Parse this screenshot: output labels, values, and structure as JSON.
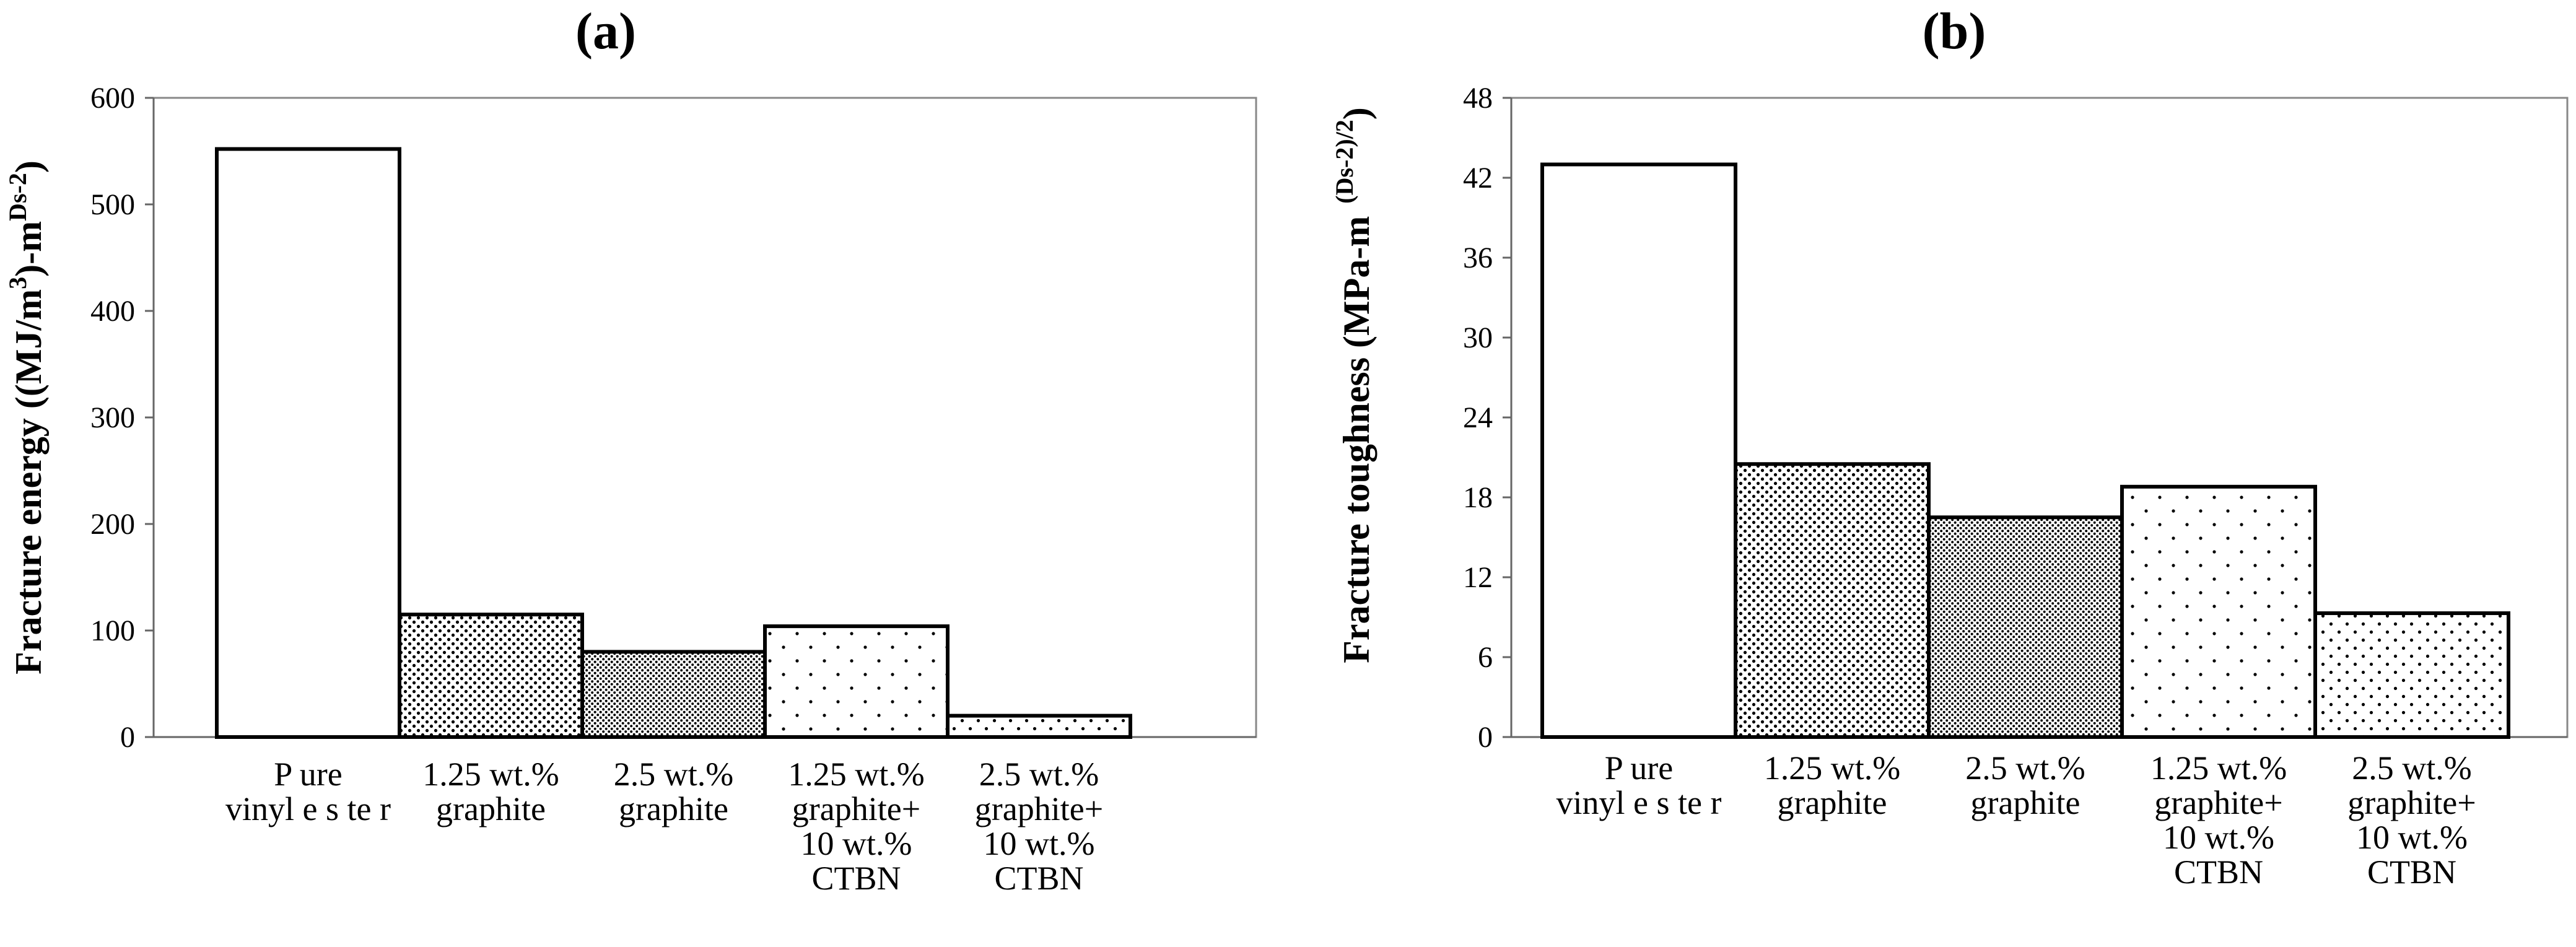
{
  "chart_data": [
    {
      "type": "bar",
      "title": "(a)",
      "ylabel": "Fracture energy ((MJ/m",
      "ylabel_sup1": "3",
      "ylabel_mid": ")-m",
      "ylabel_sup2": "Ds-2",
      "ylabel_end": ")",
      "ylim": [
        0,
        600
      ],
      "yticks": [
        "0",
        "100",
        "200",
        "300",
        "400",
        "500",
        "600"
      ],
      "categories": [
        [
          "P ure",
          "vinyl e s te r"
        ],
        [
          "1.25 wt.%",
          "graphite"
        ],
        [
          "2.5 wt.%",
          "graphite"
        ],
        [
          "1.25 wt.%",
          "graphite+",
          "10 wt.%",
          "CTBN"
        ],
        [
          "2.5 wt.%",
          "graphite+",
          "10 wt.%",
          "CTBN"
        ]
      ],
      "values": [
        552,
        115,
        80,
        104,
        20
      ],
      "patterns": [
        "none",
        "dense-dots",
        "very-dense-dots",
        "sparse-dots",
        "medium-dots"
      ],
      "grid": false
    },
    {
      "type": "bar",
      "title": "(b)",
      "ylabel": "Fracture toughness (MPa-m",
      "ylabel_sup1": "(Ds-2)/2",
      "ylabel_end": ")",
      "ylim": [
        0,
        48
      ],
      "yticks": [
        "0",
        "6",
        "12",
        "18",
        "24",
        "30",
        "36",
        "42",
        "48"
      ],
      "categories": [
        [
          "P ure",
          "vinyl e s te r"
        ],
        [
          "1.25 wt.%",
          "graphite"
        ],
        [
          "2.5 wt.%",
          "graphite"
        ],
        [
          "1.25 wt.%",
          "graphite+",
          "10 wt.%",
          "CTBN"
        ],
        [
          "2.5 wt.%",
          "graphite+",
          "10 wt.%",
          "CTBN"
        ]
      ],
      "values": [
        43,
        20.5,
        16.5,
        18.8,
        9.3
      ],
      "patterns": [
        "none",
        "dense-dots",
        "very-dense-dots",
        "sparse-dots",
        "medium-dots"
      ],
      "grid": false
    }
  ]
}
